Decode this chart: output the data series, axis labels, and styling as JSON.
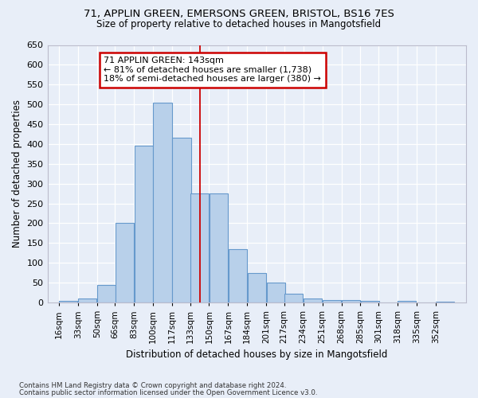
{
  "title_line1": "71, APPLIN GREEN, EMERSONS GREEN, BRISTOL, BS16 7ES",
  "title_line2": "Size of property relative to detached houses in Mangotsfield",
  "xlabel": "Distribution of detached houses by size in Mangotsfield",
  "ylabel": "Number of detached properties",
  "bar_labels": [
    "16sqm",
    "33sqm",
    "50sqm",
    "66sqm",
    "83sqm",
    "100sqm",
    "117sqm",
    "133sqm",
    "150sqm",
    "167sqm",
    "184sqm",
    "201sqm",
    "217sqm",
    "234sqm",
    "251sqm",
    "268sqm",
    "285sqm",
    "301sqm",
    "318sqm",
    "335sqm",
    "352sqm"
  ],
  "bar_values": [
    5,
    10,
    45,
    200,
    395,
    505,
    415,
    275,
    275,
    135,
    75,
    50,
    23,
    10,
    7,
    7,
    5,
    0,
    5,
    0,
    3
  ],
  "bar_color": "#b8d0ea",
  "bar_edge_color": "#6699cc",
  "bg_color": "#e8eef8",
  "grid_color": "#ffffff",
  "vline_color": "#cc0000",
  "annotation_text": "71 APPLIN GREEN: 143sqm\n← 81% of detached houses are smaller (1,738)\n18% of semi-detached houses are larger (380) →",
  "annotation_box_color": "#ffffff",
  "annotation_box_edge": "#cc0000",
  "ylim": [
    0,
    650
  ],
  "yticks": [
    0,
    50,
    100,
    150,
    200,
    250,
    300,
    350,
    400,
    450,
    500,
    550,
    600,
    650
  ],
  "footnote1": "Contains HM Land Registry data © Crown copyright and database right 2024.",
  "footnote2": "Contains public sector information licensed under the Open Government Licence v3.0.",
  "bin_starts": [
    16,
    33,
    50,
    66,
    83,
    100,
    117,
    133,
    150,
    167,
    184,
    201,
    217,
    234,
    251,
    268,
    285,
    301,
    318,
    335,
    352
  ],
  "bin_width": 17,
  "vline_x": 141.5
}
